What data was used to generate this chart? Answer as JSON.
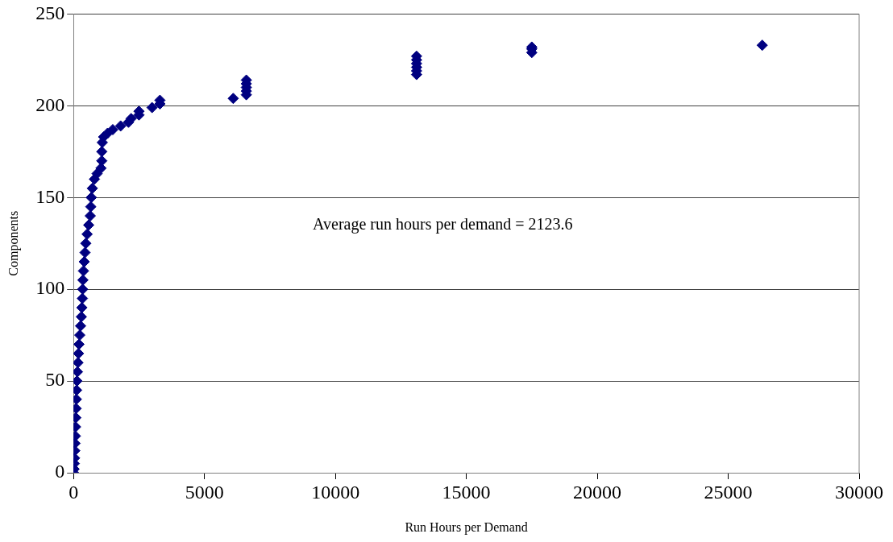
{
  "chart_data": {
    "type": "scatter",
    "xlabel": "Run Hours per Demand",
    "ylabel": "Components",
    "annotations": [
      "Average run hours per demand = 2123.6"
    ],
    "series": [
      {
        "color": "#000080",
        "x": [
          0,
          20,
          30,
          40,
          50,
          60,
          70,
          80,
          90,
          100,
          110,
          120,
          130,
          150,
          170,
          190,
          210,
          240,
          270,
          300,
          320,
          340,
          350,
          360,
          380,
          410,
          440,
          470,
          520,
          580,
          640,
          660,
          680,
          720,
          800,
          900,
          1050,
          1080,
          1080,
          1100,
          1150,
          1300,
          1500,
          1800,
          2100,
          2200,
          2500,
          2500,
          3000,
          3300,
          3300,
          6100,
          6600,
          6600,
          6600,
          6600,
          6600,
          13100,
          13100,
          13100,
          13100,
          13100,
          13100,
          17500,
          17500,
          17500,
          26300
        ],
        "values": [
          0,
          2,
          5,
          8,
          12,
          16,
          20,
          25,
          30,
          35,
          40,
          45,
          50,
          55,
          60,
          65,
          70,
          75,
          80,
          85,
          90,
          95,
          100,
          105,
          110,
          115,
          120,
          125,
          130,
          135,
          140,
          145,
          150,
          155,
          160,
          163,
          166,
          170,
          175,
          180,
          183,
          185,
          187,
          189,
          191,
          193,
          195,
          197,
          199,
          201,
          203,
          204,
          206,
          208,
          210,
          212,
          214,
          217,
          219,
          221,
          223,
          225,
          227,
          229,
          231,
          232,
          233
        ]
      }
    ],
    "xlim": [
      0,
      30000
    ],
    "xticks": [
      0,
      5000,
      10000,
      15000,
      20000,
      25000,
      30000
    ],
    "ylim": [
      0,
      250
    ],
    "yticks": [
      0,
      50,
      100,
      150,
      200,
      250
    ],
    "grid": "y",
    "legend": false,
    "marker": "diamond"
  }
}
